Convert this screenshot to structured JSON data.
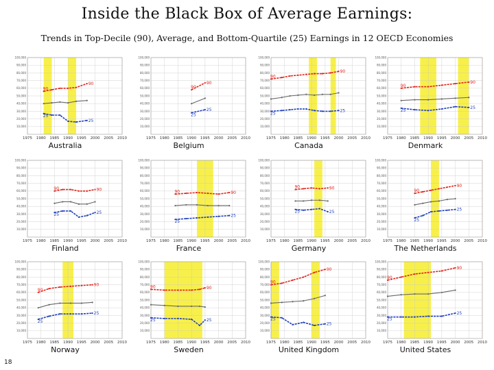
{
  "title": "Inside the Black Box of Average Earnings:",
  "subtitle": "Trends in Top-Decile (90), Average, and Bottom-Quartile (25) Earnings in 12 OECD Economies",
  "page_number": "18",
  "colors": {
    "p90": "#e2231a",
    "avg": "#666666",
    "p25": "#1f3fbf",
    "recession": "#f8f04a",
    "grid": "#c8c8c8"
  },
  "chart_data": [
    {
      "type": "line",
      "country": "Australia",
      "xlim": [
        1975,
        2010
      ],
      "ylim": [
        0,
        100000
      ],
      "x_ticks": [
        "1975",
        "1980",
        "1985",
        "1990",
        "1995",
        "2000",
        "2005",
        "2010"
      ],
      "y_ticks": [
        "100,000",
        "90,000",
        "80,000",
        "70,000",
        "60,000",
        "50,000",
        "40,000",
        "30,000",
        "20,000",
        "10,000"
      ],
      "recession_bands": [
        [
          1981,
          1984
        ],
        [
          1990,
          1993
        ]
      ],
      "series": [
        {
          "name": "90",
          "x": [
            1981,
            1984,
            1987,
            1990,
            1993,
            1997
          ],
          "y": [
            56000,
            58000,
            60000,
            60000,
            61000,
            66000
          ]
        },
        {
          "name": "",
          "x": [
            1981,
            1984,
            1987,
            1990,
            1993,
            1997
          ],
          "y": [
            40000,
            41000,
            42000,
            41000,
            43000,
            44000
          ]
        },
        {
          "name": "25",
          "x": [
            1981,
            1984,
            1987,
            1990,
            1993,
            1997
          ],
          "y": [
            27000,
            25000,
            25000,
            17000,
            16000,
            18000
          ]
        }
      ]
    },
    {
      "type": "line",
      "country": "Belgium",
      "xlim": [
        1975,
        2010
      ],
      "ylim": [
        0,
        100000
      ],
      "x_ticks": [
        "1975",
        "1980",
        "1985",
        "1990",
        "1995",
        "2000",
        "2005",
        "2010"
      ],
      "y_ticks": [
        "100,000",
        "90,000",
        "80,000",
        "70,000",
        "60,000",
        "50,000",
        "40,000",
        "30,000",
        "20,000",
        "10,000"
      ],
      "recession_bands": [],
      "series": [
        {
          "name": "90",
          "x": [
            1990,
            1995
          ],
          "y": [
            58000,
            67000
          ]
        },
        {
          "name": "",
          "x": [
            1990,
            1995
          ],
          "y": [
            40000,
            47000
          ]
        },
        {
          "name": "25",
          "x": [
            1990,
            1995
          ],
          "y": [
            28000,
            32000
          ]
        }
      ]
    },
    {
      "type": "line",
      "country": "Canada",
      "xlim": [
        1975,
        2010
      ],
      "ylim": [
        0,
        100000
      ],
      "x_ticks": [
        "1975",
        "1980",
        "1985",
        "1990",
        "1995",
        "2000",
        "2005",
        "2010"
      ],
      "y_ticks": [
        "100,000",
        "90,000",
        "80,000",
        "70,000",
        "60,000",
        "50,000",
        "40,000",
        "30,000",
        "20,000",
        "10,000"
      ],
      "recession_bands": [
        [
          1989,
          1992
        ],
        [
          1997,
          1999
        ]
      ],
      "series": [
        {
          "name": "90",
          "x": [
            1975,
            1979,
            1982,
            1985,
            1988,
            1991,
            1994,
            1997,
            2000
          ],
          "y": [
            72000,
            74000,
            76000,
            77000,
            78000,
            79000,
            79000,
            80000,
            82000
          ]
        },
        {
          "name": "",
          "x": [
            1975,
            1979,
            1982,
            1985,
            1988,
            1991,
            1994,
            1997,
            2000
          ],
          "y": [
            46000,
            48000,
            50000,
            51000,
            52000,
            51000,
            52000,
            52000,
            54000
          ]
        },
        {
          "name": "25",
          "x": [
            1975,
            1979,
            1982,
            1985,
            1988,
            1991,
            1994,
            1997,
            2000
          ],
          "y": [
            30000,
            31000,
            32000,
            33000,
            33000,
            31000,
            30000,
            30000,
            31000
          ]
        }
      ]
    },
    {
      "type": "line",
      "country": "Denmark",
      "xlim": [
        1975,
        2010
      ],
      "ylim": [
        0,
        100000
      ],
      "x_ticks": [
        "1975",
        "1980",
        "1985",
        "1990",
        "1995",
        "2000",
        "2005",
        "2010"
      ],
      "y_ticks": [
        "100,000",
        "90,000",
        "80,000",
        "70,000",
        "60,000",
        "50,000",
        "40,000",
        "30,000",
        "20,000",
        "10,000"
      ],
      "recession_bands": [
        [
          1987,
          1993
        ],
        [
          2001,
          2005
        ]
      ],
      "series": [
        {
          "name": "90",
          "x": [
            1980,
            1985,
            1990,
            1995,
            2000,
            2005
          ],
          "y": [
            60000,
            62000,
            62000,
            64000,
            66000,
            68000
          ]
        },
        {
          "name": "",
          "x": [
            1980,
            1985,
            1990,
            1995,
            2000,
            2005
          ],
          "y": [
            44000,
            45000,
            45000,
            46000,
            47000,
            48000
          ]
        },
        {
          "name": "25",
          "x": [
            1980,
            1985,
            1990,
            1995,
            2000,
            2005
          ],
          "y": [
            34000,
            32000,
            31000,
            33000,
            36000,
            35000
          ]
        }
      ]
    },
    {
      "type": "line",
      "country": "Finland",
      "xlim": [
        1975,
        2010
      ],
      "ylim": [
        0,
        100000
      ],
      "x_ticks": [
        "1975",
        "1980",
        "1985",
        "1990",
        "1995",
        "2000",
        "2005",
        "2010"
      ],
      "y_ticks": [
        "100,000",
        "90,000",
        "80,000",
        "70,000",
        "60,000",
        "50,000",
        "40,000",
        "30,000",
        "20,000",
        "10,000"
      ],
      "recession_bands": [],
      "series": [
        {
          "name": "90",
          "x": [
            1985,
            1988,
            1991,
            1994,
            1997,
            2000
          ],
          "y": [
            60000,
            62000,
            62000,
            60000,
            60000,
            62000
          ]
        },
        {
          "name": "",
          "x": [
            1985,
            1988,
            1991,
            1994,
            1997,
            2000
          ],
          "y": [
            44000,
            46000,
            46000,
            43000,
            43000,
            46000
          ]
        },
        {
          "name": "25",
          "x": [
            1985,
            1988,
            1991,
            1994,
            1997,
            2000
          ],
          "y": [
            32000,
            34000,
            34000,
            26000,
            28000,
            32000
          ]
        }
      ]
    },
    {
      "type": "line",
      "country": "France",
      "xlim": [
        1975,
        2010
      ],
      "ylim": [
        0,
        100000
      ],
      "x_ticks": [
        "1975",
        "1980",
        "1985",
        "1990",
        "1995",
        "2000",
        "2005",
        "2010"
      ],
      "y_ticks": [
        "100,000",
        "90,000",
        "80,000",
        "70,000",
        "60,000",
        "50,000",
        "40,000",
        "30,000",
        "20,000",
        "10,000"
      ],
      "recession_bands": [
        [
          1992,
          1998
        ]
      ],
      "series": [
        {
          "name": "90",
          "x": [
            1984,
            1988,
            1992,
            1996,
            2000,
            2004
          ],
          "y": [
            56000,
            57000,
            58000,
            57000,
            56000,
            58000
          ]
        },
        {
          "name": "",
          "x": [
            1984,
            1988,
            1992,
            1996,
            2000,
            2004
          ],
          "y": [
            41000,
            42000,
            42000,
            41000,
            41000,
            41000
          ]
        },
        {
          "name": "25",
          "x": [
            1984,
            1988,
            1992,
            1996,
            2000,
            2004
          ],
          "y": [
            23000,
            24000,
            25000,
            26000,
            27000,
            28000
          ]
        }
      ]
    },
    {
      "type": "line",
      "country": "Germany",
      "xlim": [
        1975,
        2010
      ],
      "ylim": [
        0,
        100000
      ],
      "x_ticks": [
        "1975",
        "1980",
        "1985",
        "1990",
        "1995",
        "2000",
        "2005",
        "2010"
      ],
      "y_ticks": [
        "100,000",
        "90,000",
        "80,000",
        "70,000",
        "60,000",
        "50,000",
        "40,000",
        "30,000",
        "20,000",
        "10,000"
      ],
      "recession_bands": [
        [
          1991,
          1994
        ]
      ],
      "series": [
        {
          "name": "90",
          "x": [
            1984,
            1987,
            1990,
            1993,
            1996
          ],
          "y": [
            62000,
            63000,
            64000,
            63000,
            64000
          ]
        },
        {
          "name": "",
          "x": [
            1984,
            1987,
            1990,
            1993,
            1996
          ],
          "y": [
            47000,
            47000,
            48000,
            48000,
            47000
          ]
        },
        {
          "name": "25",
          "x": [
            1984,
            1987,
            1990,
            1993,
            1996
          ],
          "y": [
            36000,
            35000,
            36000,
            37000,
            33000
          ]
        }
      ]
    },
    {
      "type": "line",
      "country": "The Netherlands",
      "xlim": [
        1975,
        2010
      ],
      "ylim": [
        0,
        100000
      ],
      "x_ticks": [
        "1975",
        "1980",
        "1985",
        "1990",
        "1995",
        "2000",
        "2005",
        "2010"
      ],
      "y_ticks": [
        "100,000",
        "90,000",
        "80,000",
        "70,000",
        "60,000",
        "50,000",
        "40,000",
        "30,000",
        "20,000",
        "10,000"
      ],
      "recession_bands": [
        [
          1991,
          1994
        ]
      ],
      "series": [
        {
          "name": "90",
          "x": [
            1985,
            1988,
            1991,
            1994,
            1997,
            2000
          ],
          "y": [
            57000,
            59000,
            61000,
            63000,
            65000,
            67000
          ]
        },
        {
          "name": "",
          "x": [
            1985,
            1988,
            1991,
            1994,
            1997,
            2000
          ],
          "y": [
            42000,
            44000,
            46000,
            47000,
            49000,
            50000
          ]
        },
        {
          "name": "25",
          "x": [
            1985,
            1988,
            1991,
            1994,
            1997,
            2000
          ],
          "y": [
            25000,
            28000,
            33000,
            34000,
            35000,
            36000
          ]
        }
      ]
    },
    {
      "type": "line",
      "country": "Norway",
      "xlim": [
        1975,
        2010
      ],
      "ylim": [
        0,
        100000
      ],
      "x_ticks": [
        "1975",
        "1980",
        "1985",
        "1990",
        "1995",
        "2000",
        "2005",
        "2010"
      ],
      "y_ticks": [
        "100,000",
        "90,000",
        "80,000",
        "70,000",
        "60,000",
        "50,000",
        "40,000",
        "30,000",
        "20,000",
        "10,000"
      ],
      "recession_bands": [
        [
          1988,
          1992
        ]
      ],
      "series": [
        {
          "name": "90",
          "x": [
            1979,
            1983,
            1987,
            1991,
            1995,
            1999
          ],
          "y": [
            60000,
            65000,
            67000,
            68000,
            69000,
            70000
          ]
        },
        {
          "name": "",
          "x": [
            1979,
            1983,
            1987,
            1991,
            1995,
            1999
          ],
          "y": [
            40000,
            44000,
            46000,
            46000,
            46000,
            47000
          ]
        },
        {
          "name": "25",
          "x": [
            1979,
            1983,
            1987,
            1991,
            1995,
            1999
          ],
          "y": [
            25000,
            29000,
            32000,
            32000,
            32000,
            33000
          ]
        }
      ]
    },
    {
      "type": "line",
      "country": "Sweden",
      "xlim": [
        1975,
        2010
      ],
      "ylim": [
        0,
        100000
      ],
      "x_ticks": [
        "1975",
        "1980",
        "1985",
        "1990",
        "1995",
        "2000",
        "2005",
        "2010"
      ],
      "y_ticks": [
        "100,000",
        "90,000",
        "80,000",
        "70,000",
        "60,000",
        "50,000",
        "40,000",
        "30,000",
        "20,000",
        "10,000"
      ],
      "recession_bands": [
        [
          1980,
          1994
        ]
      ],
      "series": [
        {
          "name": "90",
          "x": [
            1975,
            1980,
            1985,
            1990,
            1993,
            1995
          ],
          "y": [
            64000,
            63000,
            63000,
            63000,
            64000,
            66000
          ]
        },
        {
          "name": "",
          "x": [
            1975,
            1980,
            1985,
            1990,
            1993,
            1995
          ],
          "y": [
            44000,
            43000,
            42000,
            42000,
            42000,
            41000
          ]
        },
        {
          "name": "25",
          "x": [
            1975,
            1980,
            1985,
            1990,
            1993,
            1995
          ],
          "y": [
            27000,
            26000,
            26000,
            25000,
            17000,
            24000
          ]
        }
      ]
    },
    {
      "type": "line",
      "country": "United Kingdom",
      "xlim": [
        1975,
        2010
      ],
      "ylim": [
        0,
        100000
      ],
      "x_ticks": [
        "1975",
        "1980",
        "1985",
        "1990",
        "1995",
        "2000",
        "2005",
        "2010"
      ],
      "y_ticks": [
        "100,000",
        "90,000",
        "80,000",
        "70,000",
        "60,000",
        "50,000",
        "40,000",
        "30,000",
        "20,000",
        "10,000"
      ],
      "recession_bands": [
        [
          1974,
          1978
        ],
        [
          1990,
          1993
        ]
      ],
      "series": [
        {
          "name": "90",
          "x": [
            1975,
            1979,
            1983,
            1987,
            1991,
            1995
          ],
          "y": [
            70000,
            72000,
            76000,
            80000,
            86000,
            90000
          ]
        },
        {
          "name": "",
          "x": [
            1975,
            1979,
            1983,
            1987,
            1991,
            1995
          ],
          "y": [
            46000,
            47000,
            48000,
            49000,
            52000,
            56000
          ]
        },
        {
          "name": "25",
          "x": [
            1975,
            1979,
            1983,
            1987,
            1991,
            1995
          ],
          "y": [
            28000,
            27000,
            18000,
            21000,
            17000,
            19000
          ]
        }
      ]
    },
    {
      "type": "line",
      "country": "United States",
      "xlim": [
        1975,
        2010
      ],
      "ylim": [
        0,
        100000
      ],
      "x_ticks": [
        "1975",
        "1980",
        "1985",
        "1990",
        "1995",
        "2000",
        "2005",
        "2010"
      ],
      "y_ticks": [
        "100,000",
        "90,000",
        "80,000",
        "70,000",
        "60,000",
        "50,000",
        "40,000",
        "30,000",
        "20,000",
        "10,000"
      ],
      "recession_bands": [
        [
          1981,
          1991
        ]
      ],
      "series": [
        {
          "name": "90",
          "x": [
            1975,
            1980,
            1985,
            1990,
            1995,
            2000
          ],
          "y": [
            76000,
            80000,
            84000,
            86000,
            88000,
            92000
          ]
        },
        {
          "name": "",
          "x": [
            1975,
            1980,
            1985,
            1990,
            1995,
            2000
          ],
          "y": [
            55000,
            57000,
            58000,
            58000,
            60000,
            63000
          ]
        },
        {
          "name": "25",
          "x": [
            1975,
            1980,
            1985,
            1990,
            1995,
            2000
          ],
          "y": [
            28000,
            28000,
            28000,
            29000,
            29000,
            33000
          ]
        }
      ]
    }
  ]
}
